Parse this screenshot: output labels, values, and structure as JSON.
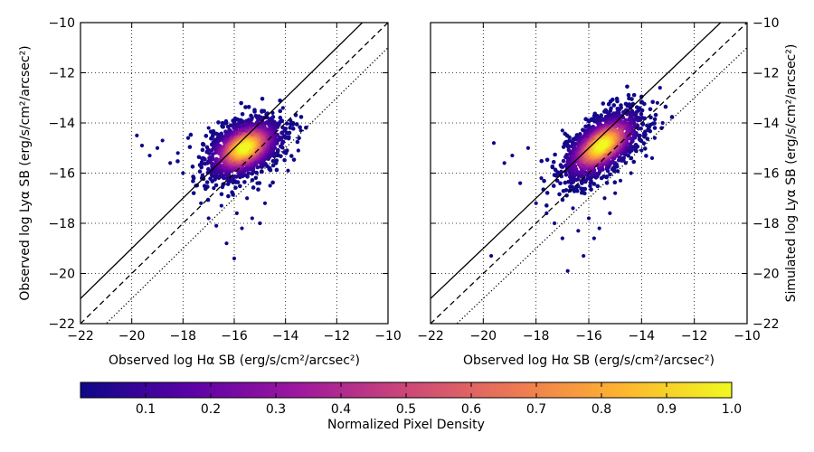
{
  "chart_data": [
    {
      "type": "scatter",
      "panel": "left",
      "xlabel": "Observed log Hα SB (erg/s/cm²/arcsec²)",
      "ylabel": "Observed log Lyα SB (erg/s/cm²/arcsec²)",
      "xlim": [
        -22,
        -10
      ],
      "ylim": [
        -22,
        -10
      ],
      "xticks": [
        -22,
        -20,
        -18,
        -16,
        -14,
        -12,
        -10
      ],
      "yticks": [
        -22,
        -20,
        -18,
        -16,
        -14,
        -12,
        -10
      ],
      "grid": true,
      "reference_lines": [
        {
          "style": "solid",
          "intercept": 1.0
        },
        {
          "style": "dashed",
          "intercept": 0.0
        },
        {
          "style": "dotted",
          "intercept": -1.0
        }
      ],
      "points": [
        [
          -19.8,
          -14.5
        ],
        [
          -19.6,
          -14.9
        ],
        [
          -19.3,
          -15.3
        ],
        [
          -19.0,
          -15.0
        ],
        [
          -18.8,
          -14.7
        ],
        [
          -18.5,
          -15.6
        ],
        [
          -18.2,
          -15.2
        ],
        [
          -18.0,
          -16.0
        ],
        [
          -17.8,
          -14.6
        ],
        [
          -17.5,
          -16.5
        ],
        [
          -17.3,
          -17.2
        ],
        [
          -17.2,
          -15.4
        ],
        [
          -17.0,
          -17.8
        ],
        [
          -16.8,
          -16.6
        ],
        [
          -16.7,
          -18.1
        ],
        [
          -16.5,
          -17.3
        ],
        [
          -16.3,
          -18.8
        ],
        [
          -16.2,
          -16.0
        ],
        [
          -16.0,
          -19.4
        ],
        [
          -15.9,
          -17.6
        ],
        [
          -15.7,
          -18.2
        ],
        [
          -15.5,
          -17.0
        ],
        [
          -15.3,
          -17.8
        ],
        [
          -15.1,
          -16.4
        ],
        [
          -15.0,
          -18.0
        ],
        [
          -14.8,
          -17.2
        ],
        [
          -14.6,
          -16.5
        ],
        [
          -14.5,
          -13.6
        ],
        [
          -14.3,
          -15.3
        ],
        [
          -14.1,
          -13.4
        ],
        [
          -14.0,
          -14.6
        ],
        [
          -13.9,
          -15.9
        ],
        [
          -13.7,
          -14.0
        ],
        [
          -13.5,
          -15.1
        ],
        [
          -13.4,
          -14.3
        ],
        [
          -13.8,
          -13.9
        ],
        [
          -14.7,
          -14.3
        ],
        [
          -15.3,
          -13.8
        ],
        [
          -16.3,
          -14.0
        ],
        [
          -17.0,
          -14.2
        ]
      ],
      "density_peak": {
        "x": -15.6,
        "y": -15.0
      }
    },
    {
      "type": "scatter",
      "panel": "right",
      "xlabel": "Observed log Hα SB (erg/s/cm²/arcsec²)",
      "ylabel": "Simulated log Lyα SB (erg/s/cm²/arcsec²)",
      "xlim": [
        -22,
        -10
      ],
      "ylim": [
        -22,
        -10
      ],
      "xticks": [
        -22,
        -20,
        -18,
        -16,
        -14,
        -12,
        -10
      ],
      "yticks": [
        -22,
        -20,
        -18,
        -16,
        -14,
        -12,
        -10
      ],
      "grid": true,
      "reference_lines": [
        {
          "style": "solid",
          "intercept": 1.0
        },
        {
          "style": "dashed",
          "intercept": 0.0
        },
        {
          "style": "dotted",
          "intercept": -1.0
        }
      ],
      "points": [
        [
          -19.7,
          -19.3
        ],
        [
          -19.6,
          -14.8
        ],
        [
          -19.2,
          -15.6
        ],
        [
          -18.9,
          -15.3
        ],
        [
          -18.6,
          -16.4
        ],
        [
          -18.3,
          -15.0
        ],
        [
          -18.0,
          -17.2
        ],
        [
          -17.8,
          -16.2
        ],
        [
          -17.6,
          -17.6
        ],
        [
          -17.3,
          -18.0
        ],
        [
          -17.0,
          -18.6
        ],
        [
          -16.8,
          -19.9
        ],
        [
          -16.6,
          -17.4
        ],
        [
          -16.4,
          -18.3
        ],
        [
          -16.2,
          -19.3
        ],
        [
          -16.0,
          -17.8
        ],
        [
          -15.8,
          -18.6
        ],
        [
          -15.6,
          -18.2
        ],
        [
          -15.4,
          -17.0
        ],
        [
          -15.2,
          -17.6
        ],
        [
          -15.0,
          -16.8
        ],
        [
          -14.8,
          -16.3
        ],
        [
          -14.6,
          -15.6
        ],
        [
          -14.4,
          -16.0
        ],
        [
          -14.2,
          -14.4
        ],
        [
          -14.0,
          -15.1
        ],
        [
          -13.8,
          -14.1
        ],
        [
          -13.6,
          -15.4
        ],
        [
          -13.5,
          -14.6
        ],
        [
          -13.4,
          -13.2
        ],
        [
          -13.3,
          -12.6
        ],
        [
          -13.2,
          -14.0
        ],
        [
          -14.5,
          -13.6
        ],
        [
          -15.0,
          -14.0
        ],
        [
          -16.0,
          -14.1
        ],
        [
          -17.0,
          -14.3
        ]
      ],
      "density_peak": {
        "x": -15.5,
        "y": -14.9
      }
    }
  ],
  "colorbar": {
    "label": "Normalized Pixel Density",
    "range": [
      0.0,
      1.0
    ],
    "ticks": [
      0.1,
      0.2,
      0.3,
      0.4,
      0.5,
      0.6,
      0.7,
      0.8,
      0.9,
      1.0
    ],
    "colormap": "plasma",
    "colors": [
      "#0d0887",
      "#5c01a6",
      "#9c179e",
      "#cc4778",
      "#ed7953",
      "#fdb42f",
      "#f0f921"
    ]
  }
}
